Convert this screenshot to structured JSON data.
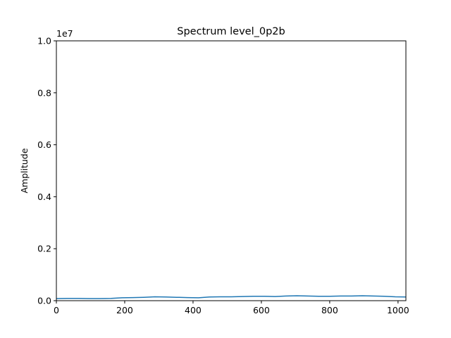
{
  "chart_data": {
    "type": "line",
    "title": "Spectrum level_0p2b",
    "xlabel": "",
    "ylabel": "Amplitude",
    "y_offset_label": "1e7",
    "xlim": [
      0,
      1023
    ],
    "ylim": [
      0,
      1.0
    ],
    "y_scale_factor": 10000000,
    "x_ticks": [
      0,
      200,
      400,
      600,
      800,
      1000
    ],
    "x_tick_labels": [
      "0",
      "200",
      "400",
      "600",
      "800",
      "1000"
    ],
    "y_ticks": [
      0.0,
      0.2,
      0.4,
      0.6,
      0.8,
      1.0
    ],
    "y_tick_labels": [
      "0.0",
      "0.2",
      "0.4",
      "0.6",
      "0.8",
      "1.0"
    ],
    "grid": false,
    "series": [
      {
        "color": "#1f77b4",
        "x": [
          0,
          32,
          64,
          96,
          128,
          160,
          192,
          224,
          256,
          288,
          320,
          352,
          384,
          416,
          448,
          480,
          512,
          544,
          576,
          608,
          640,
          672,
          704,
          736,
          768,
          800,
          832,
          864,
          896,
          928,
          960,
          992,
          1023
        ],
        "y": [
          0.008,
          0.009,
          0.009,
          0.008,
          0.008,
          0.009,
          0.011,
          0.012,
          0.013,
          0.015,
          0.014,
          0.013,
          0.012,
          0.011,
          0.014,
          0.015,
          0.015,
          0.016,
          0.017,
          0.017,
          0.016,
          0.018,
          0.019,
          0.018,
          0.017,
          0.017,
          0.018,
          0.018,
          0.019,
          0.018,
          0.017,
          0.015,
          0.014
        ]
      }
    ]
  }
}
